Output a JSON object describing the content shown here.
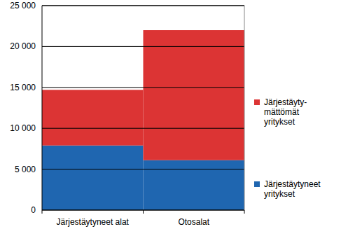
{
  "chart_data": {
    "type": "bar",
    "stacked": true,
    "grid": true,
    "legend": "right",
    "categories": [
      "Järjestäytyneet alat",
      "Otosalat"
    ],
    "series": [
      {
        "name": "Järjestäytyneet\nyritykset",
        "color": "#1f66b0",
        "values": [
          7900,
          6100
        ]
      },
      {
        "name": "Järjestäyty-\nmättömät\nyritykset",
        "color": "#dc3434",
        "values": [
          6800,
          15900
        ]
      }
    ],
    "ylim": [
      0,
      25000
    ],
    "yticks": [
      0,
      {
        "value": 5000,
        "label": "5 000"
      },
      {
        "value": 10000,
        "label": "10 000"
      },
      {
        "value": 15000,
        "label": "15 000"
      },
      {
        "value": 20000,
        "label": "20 000"
      },
      {
        "value": 25000,
        "label": "25 000"
      }
    ]
  }
}
